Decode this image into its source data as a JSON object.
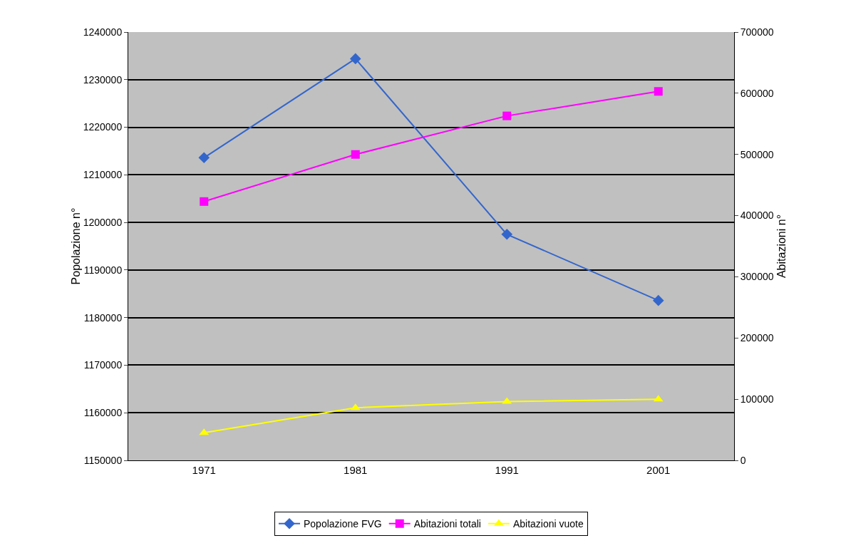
{
  "chart_data": {
    "type": "line",
    "ylabel": "Popolazione n°",
    "y2label": "Abitazioni n°",
    "categories": [
      "1971",
      "1981",
      "1991",
      "2001"
    ],
    "series": [
      {
        "name": "Popolazione FVG",
        "color": "#3366cc",
        "marker": "diamond",
        "values": [
          1213600,
          1234400,
          1197500,
          1183600
        ]
      },
      {
        "name": "Abitazioni totali",
        "color": "#ff00ff",
        "marker": "square",
        "axis": "y2",
        "values": [
          423000,
          500000,
          563000,
          603000
        ]
      },
      {
        "name": "Abitazioni vuote",
        "color": "#ffff00",
        "marker": "triangle",
        "axis": "y2",
        "values": [
          45000,
          86000,
          96000,
          100000
        ]
      }
    ],
    "ylim": [
      1150000,
      1240000
    ],
    "yticks": [
      1150000,
      1160000,
      1170000,
      1180000,
      1190000,
      1200000,
      1210000,
      1220000,
      1230000,
      1240000
    ],
    "y2lim": [
      0,
      700000
    ],
    "y2ticks": [
      0,
      100000,
      200000,
      300000,
      400000,
      500000,
      600000,
      700000
    ],
    "grid": "y",
    "legend": "bottom"
  }
}
